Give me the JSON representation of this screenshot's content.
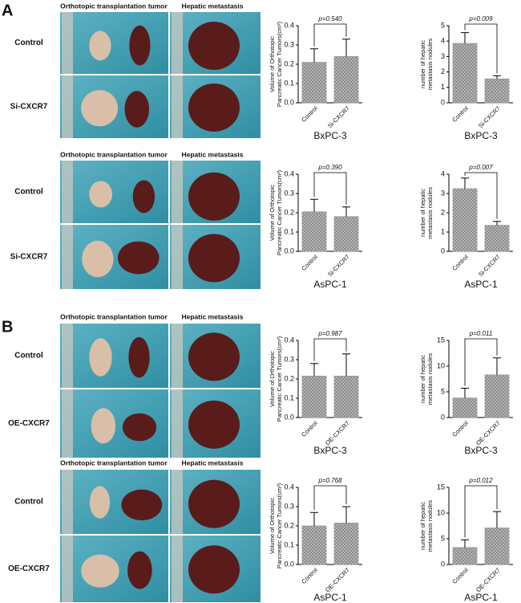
{
  "figure": {
    "panels": [
      {
        "label": "A",
        "sections": [
          {
            "col_headers": [
              "Orthotopic transplantation tumor",
              "Hepatic metastasis"
            ],
            "row_labels": [
              "Control",
              "Si-CXCR7"
            ]
          },
          {
            "col_headers": [
              "Orthotopic transplantation tumor",
              "Hepatic metastasis"
            ],
            "row_labels": [
              "Control",
              "Si-CXCR7"
            ]
          }
        ]
      },
      {
        "label": "B",
        "sections": [
          {
            "col_headers": [
              "Orthotopic transplantation tumor",
              "Hepatic metastasis"
            ],
            "row_labels": [
              "Control",
              "OE-CXCR7"
            ]
          },
          {
            "col_headers": [
              "Orthotopic transplantation tumor",
              "Hepatic metastasis"
            ],
            "row_labels": [
              "Control",
              "OE-CXCR7"
            ]
          }
        ]
      }
    ]
  },
  "chart_data": [
    {
      "type": "bar",
      "ylabel": [
        "Volume of Orthotopic",
        "Pancreatic Cancer Tumors(cm³)"
      ],
      "xlabel": "BxPC-3",
      "categories": [
        "Control",
        "Si-CXCR7"
      ],
      "values": [
        0.21,
        0.24
      ],
      "errors": [
        0.07,
        0.09
      ],
      "annotation": "p=0.540",
      "ylim": [
        0,
        0.4
      ],
      "yticks": [
        {
          "value": 0,
          "label": "0.0"
        },
        0.1,
        0.2,
        0.3,
        0.4
      ],
      "color": "#9a9a9a"
    },
    {
      "type": "bar",
      "ylabel": [
        "number of hepatic",
        "metastasis nodules"
      ],
      "xlabel": "BxPC-3",
      "categories": [
        "Control",
        "Si-CXCR7"
      ],
      "values": [
        3.85,
        1.55
      ],
      "errors": [
        0.7,
        0.2
      ],
      "annotation": "p=0.009",
      "ylim": [
        0,
        5
      ],
      "yticks": [
        0,
        1,
        2,
        3,
        4,
        5
      ],
      "color": "#9a9a9a"
    },
    {
      "type": "bar",
      "ylabel": [
        "Volume of Orthotopic",
        "Pancreatic Cancer Tumors(cm³)"
      ],
      "xlabel": "AsPC-1",
      "categories": [
        "Control",
        "Si-CXCR7"
      ],
      "values": [
        0.205,
        0.18
      ],
      "errors": [
        0.065,
        0.05
      ],
      "annotation": "p=0.390",
      "ylim": [
        0,
        0.4
      ],
      "yticks": [
        {
          "value": 0,
          "label": "0.0"
        },
        0.1,
        0.2,
        0.3,
        0.4
      ],
      "color": "#9a9a9a"
    },
    {
      "type": "bar",
      "ylabel": [
        "number of hepatic",
        "metastasis nodules"
      ],
      "xlabel": "AsPC-1",
      "categories": [
        "Control",
        "Si-CXCR7"
      ],
      "values": [
        3.25,
        1.35
      ],
      "errors": [
        0.55,
        0.2
      ],
      "annotation": "p=0.007",
      "ylim": [
        0,
        4
      ],
      "yticks": [
        0,
        1,
        2,
        3,
        4
      ],
      "color": "#9a9a9a"
    },
    {
      "type": "bar",
      "ylabel": [
        "Volume of Orthotopic",
        "Pancreatic Cancer Tumors(cm³)"
      ],
      "xlabel": "BxPC-3",
      "categories": [
        "Control",
        "OE-CXCR7"
      ],
      "values": [
        0.215,
        0.215
      ],
      "errors": [
        0.065,
        0.115
      ],
      "annotation": "p=0.987",
      "ylim": [
        0,
        0.4
      ],
      "yticks": [
        {
          "value": 0,
          "label": "0.0"
        },
        0.1,
        0.2,
        0.3,
        0.4
      ],
      "color": "#9a9a9a"
    },
    {
      "type": "bar",
      "ylabel": [
        "number of hepatic",
        "metastasis nodules"
      ],
      "xlabel": "BxPC-3",
      "categories": [
        "Control",
        "OE-CXCR7"
      ],
      "values": [
        3.8,
        8.3
      ],
      "errors": [
        1.9,
        3.3
      ],
      "annotation": "p=0.011",
      "ylim": [
        0,
        15
      ],
      "yticks": [
        0,
        5,
        10,
        15
      ],
      "color": "#9a9a9a"
    },
    {
      "type": "bar",
      "ylabel": [
        "Volume of Orthotopic",
        "Pancreatic Cancer Tumors(cm³)"
      ],
      "xlabel": "AsPC-1",
      "categories": [
        "Control",
        "OE-CXCR7"
      ],
      "values": [
        0.2,
        0.215
      ],
      "errors": [
        0.07,
        0.085
      ],
      "annotation": "p=0.768",
      "ylim": [
        0,
        0.4
      ],
      "yticks": [
        {
          "value": 0,
          "label": "0.0"
        },
        0.1,
        0.2,
        0.3,
        0.4
      ],
      "color": "#9a9a9a"
    },
    {
      "type": "bar",
      "ylabel": [
        "number of hepatic",
        "metastasis nodules"
      ],
      "xlabel": "AsPC-1",
      "categories": [
        "Control",
        "OE-CXCR7"
      ],
      "values": [
        3.3,
        7.1
      ],
      "errors": [
        1.5,
        3.2
      ],
      "annotation": "p=0.012",
      "ylim": [
        0,
        15
      ],
      "yticks": [
        0,
        5,
        10,
        15
      ],
      "color": "#9a9a9a"
    }
  ]
}
